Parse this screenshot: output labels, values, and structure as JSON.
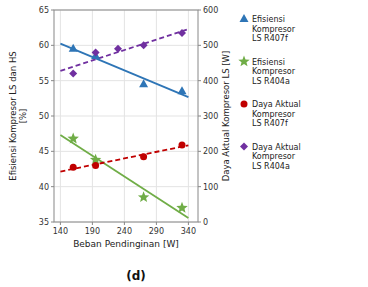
{
  "chart_data": {
    "type": "scatter",
    "title": "(d)",
    "xlabel": "Beban Pendinginan [W]",
    "ylabel": "Efisiensi Kompresor LS dan HS\n[%]",
    "y2label": "Daya Aktual Kompresor LS [W]",
    "xlim": [
      130,
      355
    ],
    "ylim": [
      35,
      65
    ],
    "y2lim": [
      0,
      600
    ],
    "xticks": [
      140,
      190,
      240,
      290,
      340
    ],
    "yticks": [
      35,
      40,
      45,
      50,
      55,
      60,
      65
    ],
    "y2ticks": [
      0,
      100,
      200,
      300,
      400,
      500,
      600
    ],
    "grid": true,
    "legend": "right",
    "series": [
      {
        "name": "Efisiensi\nKompresor\nLS R407f",
        "type": "scatter",
        "color": "#2E75B6",
        "marker": "triangle",
        "x": [
          160,
          195,
          270,
          330
        ],
        "values": [
          59.5,
          58.5,
          54.5,
          53.5
        ]
      },
      {
        "name": "Efisiensi\nKompresor\nLS R404a",
        "type": "scatter",
        "color": "#70AD47",
        "marker": "star",
        "x": [
          160,
          195,
          270,
          330
        ],
        "values": [
          46.8,
          43.8,
          38.5,
          37.0
        ]
      },
      {
        "name": "Daya Aktual\nKompresor\nLS R407f",
        "type": "scatter",
        "color": "#C00000",
        "marker": "circle",
        "axis": "y2",
        "x": [
          160,
          195,
          270,
          330
        ],
        "values": [
          155,
          160,
          185,
          218
        ]
      },
      {
        "name": "Daya Aktual\nKompresor\nLS R404a",
        "type": "scatter",
        "color": "#7030A0",
        "marker": "diamond",
        "axis": "y2",
        "x": [
          160,
          195,
          230,
          270,
          330
        ],
        "values": [
          420,
          480,
          490,
          500,
          535
        ]
      },
      {
        "type": "line",
        "color": "#2E75B6",
        "line_style": "solid",
        "x": [
          140,
          340
        ],
        "values": [
          60.24,
          52.66
        ]
      },
      {
        "type": "line",
        "color": "#70AD47",
        "line_style": "solid",
        "x": [
          140,
          340
        ],
        "values": [
          47.32,
          35.58
        ]
      },
      {
        "type": "line",
        "color": "#C00000",
        "line_style": "dashed",
        "axis": "y2",
        "x": [
          140,
          340
        ],
        "values": [
          142.83,
          217.09
        ]
      },
      {
        "type": "line",
        "color": "#7030A0",
        "line_style": "dashed",
        "axis": "y2",
        "x": [
          140,
          340
        ],
        "values": [
          427.7,
          545.84
        ]
      }
    ]
  }
}
